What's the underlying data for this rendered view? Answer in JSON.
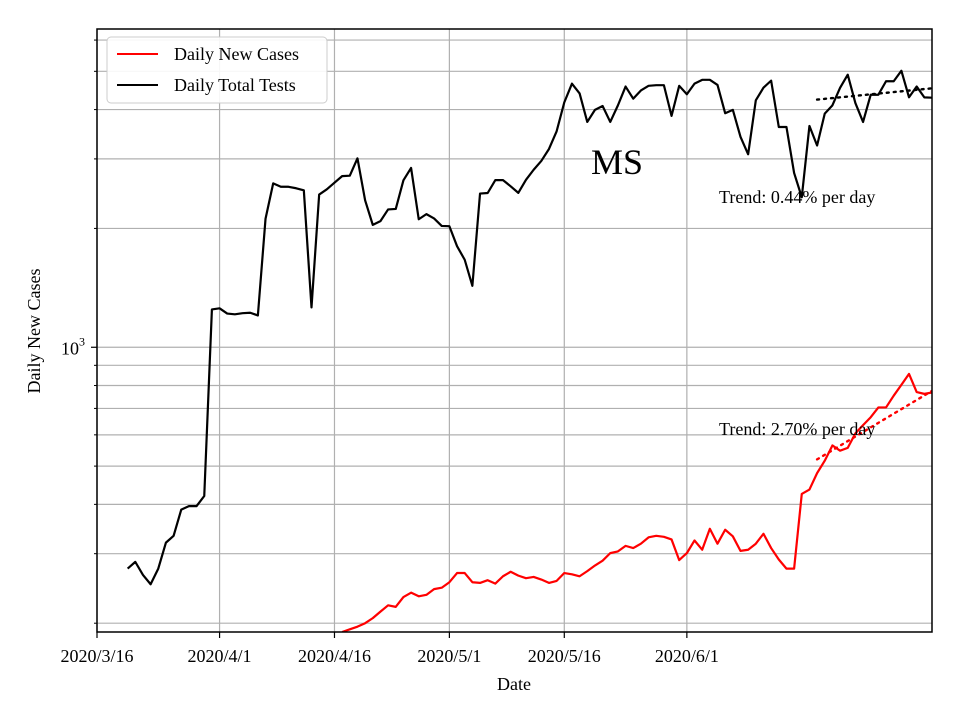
{
  "chart_data": {
    "type": "line",
    "title": "",
    "state_label": "MS",
    "xlabel": "Date",
    "ylabel": "Daily New Cases",
    "yscale": "log",
    "ylim": [
      190,
      6400
    ],
    "xlim_days": [
      0,
      109
    ],
    "grid": true,
    "legend_position": "top-left",
    "x_ticks": [
      {
        "day": 0,
        "label": "2020/3/16"
      },
      {
        "day": 16,
        "label": "2020/4/1"
      },
      {
        "day": 31,
        "label": "2020/4/16"
      },
      {
        "day": 46,
        "label": "2020/5/1"
      },
      {
        "day": 61,
        "label": "2020/5/16"
      },
      {
        "day": 77,
        "label": "2020/6/1"
      }
    ],
    "y_tick_major": {
      "value": 1000,
      "base": "10",
      "exponent": "3"
    },
    "y_minor_ticks": [
      200,
      300,
      400,
      500,
      600,
      700,
      800,
      900,
      2000,
      3000,
      4000,
      5000,
      6000
    ],
    "series": [
      {
        "name": "Daily New Cases",
        "color": "#ff0000",
        "start_day": 32,
        "values": [
          190,
          193,
          196,
          200,
          206,
          214,
          222,
          220,
          233,
          239,
          234,
          236,
          244,
          246,
          254,
          268,
          268,
          254,
          253,
          257,
          252,
          263,
          270,
          264,
          260,
          262,
          258,
          253,
          256,
          268,
          266,
          263,
          271,
          280,
          288,
          301,
          304,
          314,
          310,
          318,
          330,
          333,
          331,
          326,
          289,
          301,
          324,
          307,
          347,
          318,
          345,
          332,
          305,
          307,
          318,
          337,
          310,
          290,
          275,
          275,
          425,
          436,
          480,
          516,
          564,
          547,
          556,
          605,
          635,
          665,
          704,
          704,
          754,
          803,
          856,
          770,
          762,
          768,
          695
        ]
      },
      {
        "name": "Daily Total Tests",
        "color": "#000000",
        "start_day": 4,
        "values": [
          275,
          286,
          265,
          251,
          275,
          320,
          333,
          388,
          396,
          396,
          420,
          1247,
          1255,
          1217,
          1212,
          1220,
          1223,
          1204,
          2116,
          2601,
          2550,
          2550,
          2528,
          2497,
          1262,
          2437,
          2512,
          2612,
          2713,
          2720,
          3010,
          2356,
          2042,
          2087,
          2234,
          2241,
          2648,
          2846,
          2110,
          2174,
          2120,
          2029,
          2026,
          1803,
          1666,
          1431,
          2451,
          2459,
          2651,
          2651,
          2557,
          2461,
          2656,
          2816,
          2965,
          3179,
          3525,
          4172,
          4653,
          4395,
          3722,
          3993,
          4084,
          3722,
          4099,
          4575,
          4263,
          4472,
          4595,
          4612,
          4612,
          3855,
          4595,
          4374,
          4654,
          4758,
          4758,
          4619,
          3916,
          3994,
          3413,
          3082,
          4222,
          4544,
          4736,
          3614,
          3614,
          2764,
          2399,
          3636,
          3244,
          3907,
          4100,
          4541,
          4902,
          4155,
          3722,
          4362,
          4362,
          4719,
          4719,
          5017,
          4297,
          4577,
          4295,
          4287,
          4110
        ]
      }
    ],
    "trend_lines": [
      {
        "series": "Daily Total Tests",
        "color": "#000000",
        "label": "Trend: 0.44% per day",
        "start_day": 94,
        "end_day": 109,
        "start_value": 4240,
        "rate_pct": 0.44
      },
      {
        "series": "Daily New Cases",
        "color": "#ff0000",
        "label": "Trend: 2.70% per day",
        "start_day": 94,
        "end_day": 109,
        "start_value": 520,
        "rate_pct": 2.7
      }
    ]
  }
}
